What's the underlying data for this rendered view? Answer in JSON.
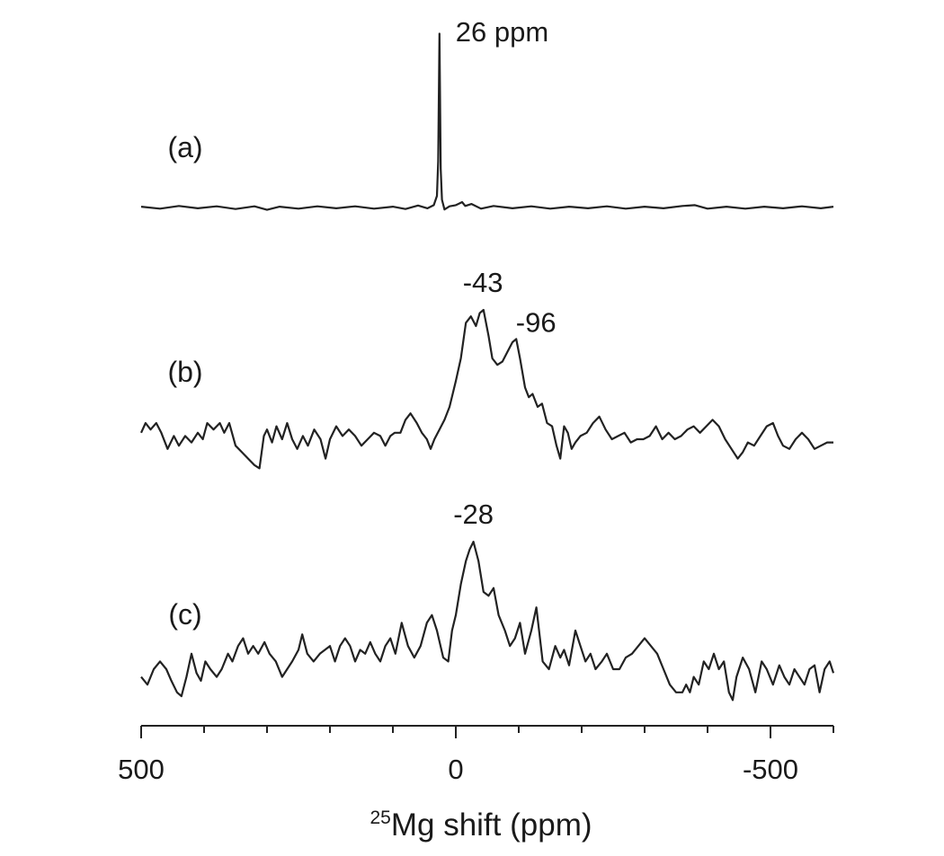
{
  "chart_data": {
    "type": "line",
    "xlabel_isotope": "25",
    "xlabel_text": "Mg shift (ppm)",
    "xlim": [
      500,
      -600
    ],
    "x_reversed": true,
    "major_ticks": [
      500,
      0,
      -500
    ],
    "major_tick_labels": [
      "500",
      "0",
      "-500"
    ],
    "minor_tick_step": 100,
    "grid": false,
    "series": [
      {
        "label": "(a)",
        "peaks": [
          {
            "x": 26,
            "text": "26 ppm"
          }
        ],
        "points": [
          [
            500,
            0.2
          ],
          [
            470,
            -0.3
          ],
          [
            440,
            0.4
          ],
          [
            410,
            -0.2
          ],
          [
            380,
            0.3
          ],
          [
            350,
            -0.4
          ],
          [
            320,
            0.3
          ],
          [
            300,
            -0.6
          ],
          [
            280,
            0.2
          ],
          [
            250,
            -0.3
          ],
          [
            220,
            0.3
          ],
          [
            190,
            -0.2
          ],
          [
            160,
            0.3
          ],
          [
            130,
            -0.3
          ],
          [
            100,
            0.2
          ],
          [
            80,
            -0.4
          ],
          [
            60,
            0.5
          ],
          [
            45,
            -0.2
          ],
          [
            35,
            0.6
          ],
          [
            30,
            3
          ],
          [
            28,
            12
          ],
          [
            26,
            45
          ],
          [
            24,
            10
          ],
          [
            22,
            2
          ],
          [
            18,
            -0.5
          ],
          [
            10,
            0.3
          ],
          [
            0,
            0.6
          ],
          [
            -10,
            1.4
          ],
          [
            -15,
            0.4
          ],
          [
            -25,
            0.9
          ],
          [
            -40,
            -0.3
          ],
          [
            -60,
            0.4
          ],
          [
            -90,
            -0.2
          ],
          [
            -120,
            0.3
          ],
          [
            -150,
            -0.3
          ],
          [
            -180,
            0.2
          ],
          [
            -210,
            -0.2
          ],
          [
            -240,
            0.3
          ],
          [
            -270,
            -0.3
          ],
          [
            -300,
            0.2
          ],
          [
            -330,
            -0.2
          ],
          [
            -360,
            0.4
          ],
          [
            -380,
            0.6
          ],
          [
            -400,
            -0.3
          ],
          [
            -430,
            0.2
          ],
          [
            -460,
            -0.3
          ],
          [
            -490,
            0.2
          ],
          [
            -520,
            -0.2
          ],
          [
            -550,
            0.3
          ],
          [
            -580,
            -0.2
          ],
          [
            -600,
            0.2
          ]
        ]
      },
      {
        "label": "(b)",
        "peaks": [
          {
            "x": -43,
            "text": "-43"
          },
          {
            "x": -96,
            "text": "-96"
          }
        ],
        "points": [
          [
            500,
            2
          ],
          [
            493,
            5
          ],
          [
            485,
            3
          ],
          [
            476,
            5
          ],
          [
            468,
            2
          ],
          [
            458,
            -3
          ],
          [
            448,
            1
          ],
          [
            440,
            -2
          ],
          [
            430,
            1
          ],
          [
            420,
            -1
          ],
          [
            410,
            2
          ],
          [
            402,
            0
          ],
          [
            395,
            5
          ],
          [
            385,
            3
          ],
          [
            375,
            5
          ],
          [
            368,
            2
          ],
          [
            360,
            5
          ],
          [
            350,
            -2
          ],
          [
            340,
            -4
          ],
          [
            330,
            -6
          ],
          [
            320,
            -8
          ],
          [
            312,
            -9
          ],
          [
            305,
            1
          ],
          [
            300,
            3
          ],
          [
            292,
            -1
          ],
          [
            285,
            4
          ],
          [
            276,
            0
          ],
          [
            268,
            5
          ],
          [
            260,
            0
          ],
          [
            252,
            -3
          ],
          [
            243,
            1
          ],
          [
            235,
            -2
          ],
          [
            225,
            3
          ],
          [
            215,
            0
          ],
          [
            207,
            -6
          ],
          [
            200,
            0
          ],
          [
            190,
            4
          ],
          [
            180,
            1
          ],
          [
            170,
            3
          ],
          [
            160,
            1
          ],
          [
            150,
            -2
          ],
          [
            140,
            0
          ],
          [
            130,
            2
          ],
          [
            120,
            1
          ],
          [
            112,
            -2
          ],
          [
            104,
            1
          ],
          [
            97,
            2
          ],
          [
            88,
            2
          ],
          [
            80,
            6
          ],
          [
            72,
            8
          ],
          [
            62,
            5
          ],
          [
            54,
            2
          ],
          [
            46,
            0
          ],
          [
            40,
            -3
          ],
          [
            34,
            0
          ],
          [
            26,
            3
          ],
          [
            18,
            6
          ],
          [
            10,
            10
          ],
          [
            0,
            18
          ],
          [
            -8,
            25
          ],
          [
            -16,
            36
          ],
          [
            -24,
            38
          ],
          [
            -32,
            35
          ],
          [
            -38,
            39
          ],
          [
            -44,
            40
          ],
          [
            -52,
            32
          ],
          [
            -58,
            25
          ],
          [
            -66,
            23
          ],
          [
            -74,
            24
          ],
          [
            -82,
            27
          ],
          [
            -90,
            30
          ],
          [
            -96,
            31
          ],
          [
            -102,
            25
          ],
          [
            -110,
            16
          ],
          [
            -116,
            13
          ],
          [
            -122,
            14
          ],
          [
            -130,
            10
          ],
          [
            -137,
            11
          ],
          [
            -145,
            5
          ],
          [
            -153,
            4
          ],
          [
            -160,
            -2
          ],
          [
            -166,
            -6
          ],
          [
            -172,
            4
          ],
          [
            -178,
            2
          ],
          [
            -184,
            -3
          ],
          [
            -190,
            -1
          ],
          [
            -198,
            1
          ],
          [
            -208,
            2
          ],
          [
            -218,
            5
          ],
          [
            -228,
            7
          ],
          [
            -238,
            3
          ],
          [
            -248,
            0
          ],
          [
            -258,
            1
          ],
          [
            -268,
            2
          ],
          [
            -278,
            -1
          ],
          [
            -288,
            0
          ],
          [
            -298,
            0
          ],
          [
            -308,
            1
          ],
          [
            -318,
            4
          ],
          [
            -328,
            0
          ],
          [
            -338,
            2
          ],
          [
            -348,
            0
          ],
          [
            -358,
            1
          ],
          [
            -368,
            3
          ],
          [
            -378,
            4
          ],
          [
            -388,
            2
          ],
          [
            -398,
            4
          ],
          [
            -408,
            6
          ],
          [
            -418,
            4
          ],
          [
            -428,
            0
          ],
          [
            -438,
            -3
          ],
          [
            -448,
            -6
          ],
          [
            -456,
            -4
          ],
          [
            -464,
            -1
          ],
          [
            -474,
            -2
          ],
          [
            -484,
            1
          ],
          [
            -494,
            4
          ],
          [
            -504,
            5
          ],
          [
            -512,
            1
          ],
          [
            -520,
            -2
          ],
          [
            -530,
            -3
          ],
          [
            -540,
            0
          ],
          [
            -550,
            2
          ],
          [
            -560,
            0
          ],
          [
            -570,
            -3
          ],
          [
            -580,
            -2
          ],
          [
            -590,
            -1
          ],
          [
            -600,
            -1
          ]
        ]
      },
      {
        "label": "(c)",
        "peaks": [
          {
            "x": -28,
            "text": "-28"
          }
        ],
        "points": [
          [
            500,
            -2
          ],
          [
            490,
            -4
          ],
          [
            480,
            0
          ],
          [
            470,
            2
          ],
          [
            460,
            0
          ],
          [
            452,
            -3
          ],
          [
            443,
            -6
          ],
          [
            436,
            -7
          ],
          [
            428,
            -2
          ],
          [
            420,
            4
          ],
          [
            412,
            -1
          ],
          [
            405,
            -3
          ],
          [
            398,
            2
          ],
          [
            390,
            0
          ],
          [
            380,
            -2
          ],
          [
            372,
            0
          ],
          [
            362,
            4
          ],
          [
            355,
            2
          ],
          [
            346,
            6
          ],
          [
            338,
            8
          ],
          [
            330,
            4
          ],
          [
            322,
            6
          ],
          [
            314,
            4
          ],
          [
            304,
            7
          ],
          [
            296,
            4
          ],
          [
            286,
            2
          ],
          [
            276,
            -2
          ],
          [
            268,
            0
          ],
          [
            260,
            2
          ],
          [
            250,
            5
          ],
          [
            244,
            9
          ],
          [
            236,
            4
          ],
          [
            226,
            2
          ],
          [
            216,
            4
          ],
          [
            208,
            5
          ],
          [
            200,
            6
          ],
          [
            192,
            2
          ],
          [
            184,
            6
          ],
          [
            176,
            8
          ],
          [
            168,
            6
          ],
          [
            160,
            2
          ],
          [
            152,
            5
          ],
          [
            144,
            4
          ],
          [
            136,
            7
          ],
          [
            128,
            4
          ],
          [
            120,
            2
          ],
          [
            112,
            6
          ],
          [
            104,
            8
          ],
          [
            96,
            4
          ],
          [
            86,
            12
          ],
          [
            76,
            6
          ],
          [
            66,
            3
          ],
          [
            56,
            6
          ],
          [
            46,
            12
          ],
          [
            38,
            14
          ],
          [
            30,
            10
          ],
          [
            20,
            3
          ],
          [
            12,
            2
          ],
          [
            6,
            10
          ],
          [
            0,
            14
          ],
          [
            -8,
            22
          ],
          [
            -16,
            28
          ],
          [
            -22,
            31
          ],
          [
            -28,
            33
          ],
          [
            -36,
            28
          ],
          [
            -44,
            20
          ],
          [
            -52,
            19
          ],
          [
            -60,
            21
          ],
          [
            -68,
            14
          ],
          [
            -78,
            10
          ],
          [
            -86,
            6
          ],
          [
            -94,
            8
          ],
          [
            -102,
            12
          ],
          [
            -110,
            4
          ],
          [
            -120,
            10
          ],
          [
            -128,
            16
          ],
          [
            -138,
            2
          ],
          [
            -148,
            0
          ],
          [
            -158,
            6
          ],
          [
            -166,
            3
          ],
          [
            -172,
            5
          ],
          [
            -180,
            1
          ],
          [
            -190,
            10
          ],
          [
            -198,
            6
          ],
          [
            -206,
            2
          ],
          [
            -214,
            4
          ],
          [
            -222,
            0
          ],
          [
            -232,
            2
          ],
          [
            -240,
            4
          ],
          [
            -250,
            0
          ],
          [
            -260,
            0
          ],
          [
            -270,
            3
          ],
          [
            -280,
            4
          ],
          [
            -290,
            6
          ],
          [
            -300,
            8
          ],
          [
            -310,
            6
          ],
          [
            -320,
            4
          ],
          [
            -330,
            0
          ],
          [
            -340,
            -4
          ],
          [
            -350,
            -6
          ],
          [
            -360,
            -6
          ],
          [
            -366,
            -4
          ],
          [
            -372,
            -6
          ],
          [
            -378,
            -2
          ],
          [
            -386,
            -4
          ],
          [
            -394,
            2
          ],
          [
            -402,
            0
          ],
          [
            -410,
            4
          ],
          [
            -418,
            0
          ],
          [
            -426,
            2
          ],
          [
            -434,
            -6
          ],
          [
            -440,
            -8
          ],
          [
            -446,
            -2
          ],
          [
            -456,
            3
          ],
          [
            -466,
            0
          ],
          [
            -476,
            -6
          ],
          [
            -486,
            2
          ],
          [
            -494,
            0
          ],
          [
            -504,
            -4
          ],
          [
            -514,
            1
          ],
          [
            -522,
            -2
          ],
          [
            -530,
            -4
          ],
          [
            -538,
            0
          ],
          [
            -546,
            -2
          ],
          [
            -554,
            -4
          ],
          [
            -562,
            0
          ],
          [
            -570,
            1
          ],
          [
            -578,
            -6
          ],
          [
            -586,
            0
          ],
          [
            -594,
            2
          ],
          [
            -600,
            -1
          ]
        ]
      }
    ]
  }
}
